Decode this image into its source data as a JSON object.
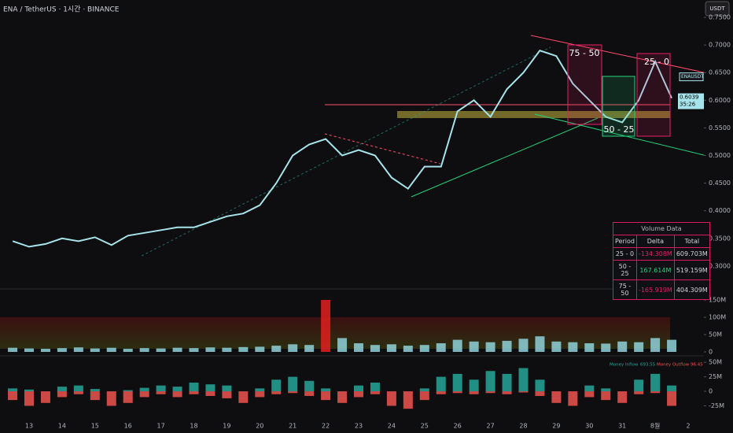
{
  "header": {
    "title": "ENA / TetherUS · 1시간 · BINANCE",
    "currency": "USDT"
  },
  "price_tag": {
    "symbol": "ENAUSDT",
    "countdown": "35:26"
  },
  "zones": [
    {
      "label": "75 - 50",
      "color": "#e91e63"
    },
    {
      "label": "50 - 25",
      "color": "#26d07c"
    },
    {
      "label": "25 - 0",
      "color": "#e91e63"
    }
  ],
  "table": {
    "title": "Volume Data",
    "columns": [
      "Period",
      "Delta",
      "Total"
    ],
    "rows": [
      [
        "25 - 0",
        "-134.308M",
        "609.703M"
      ],
      [
        "50 - 25",
        "167.614M",
        "519.159M"
      ],
      [
        "75 - 50",
        "-165.919M",
        "404.309M"
      ]
    ]
  },
  "chart_data": [
    {
      "type": "line",
      "last_price": 0.6039,
      "categories": [
        null,
        "13",
        null,
        "14",
        null,
        "15",
        null,
        "16",
        null,
        "17",
        null,
        "18",
        null,
        "19",
        null,
        "20",
        null,
        "21",
        null,
        "22",
        null,
        "23",
        null,
        "24",
        null,
        "25",
        null,
        "26",
        null,
        "27",
        null,
        "28",
        null,
        "29",
        null,
        "30",
        null,
        "31",
        null,
        "8월",
        null,
        "2"
      ],
      "series": [
        {
          "name": "ENAUSDT",
          "color": "#a7e3ea",
          "values": [
            0.345,
            0.335,
            0.34,
            0.35,
            0.345,
            0.352,
            0.338,
            0.355,
            0.36,
            0.365,
            0.37,
            0.37,
            0.38,
            0.39,
            0.395,
            0.41,
            0.45,
            0.5,
            0.52,
            0.53,
            0.5,
            0.51,
            0.5,
            0.46,
            0.44,
            0.48,
            0.48,
            0.58,
            0.6,
            0.57,
            0.62,
            0.65,
            0.69,
            0.68,
            0.63,
            0.6,
            0.57,
            0.56,
            0.6,
            0.67,
            0.6039,
            null
          ]
        }
      ],
      "ylim": [
        0.27,
        0.765
      ],
      "yticks": [
        {
          "value": 0.75,
          "label": "0.7500"
        },
        {
          "value": 0.7,
          "label": "0.7000"
        },
        {
          "value": 0.65,
          "label": "0.6500"
        },
        {
          "value": 0.6,
          "label": "0.6000"
        },
        {
          "value": 0.55,
          "label": "0.5500"
        },
        {
          "value": 0.5,
          "label": "0.5000"
        },
        {
          "value": 0.45,
          "label": "0.4500"
        },
        {
          "value": 0.4,
          "label": "0.4000"
        },
        {
          "value": 0.35,
          "label": "0.3500"
        },
        {
          "value": 0.3,
          "label": "0.3000"
        }
      ]
    },
    {
      "type": "bar",
      "series": [
        {
          "name": "Volume",
          "color": "#8fd1d9",
          "values": [
            12,
            10,
            9,
            11,
            13,
            10,
            12,
            9,
            11,
            10,
            12,
            11,
            13,
            12,
            14,
            15,
            18,
            22,
            20,
            150,
            40,
            25,
            20,
            22,
            18,
            20,
            25,
            35,
            30,
            28,
            32,
            38,
            45,
            30,
            28,
            25,
            24,
            30,
            28,
            40,
            35,
            null
          ]
        }
      ],
      "ylim": [
        0,
        175
      ],
      "yticks": [
        {
          "value": 150,
          "label": "150M"
        },
        {
          "value": 100,
          "label": "100M"
        },
        {
          "value": 50,
          "label": "50M"
        },
        0
      ]
    },
    {
      "type": "bar",
      "legend_values": [
        693.55,
        96.45
      ],
      "series": [
        {
          "name": "Money Inflow",
          "color": "#26a69a",
          "values": [
            5,
            3,
            0,
            8,
            10,
            4,
            0,
            2,
            6,
            10,
            8,
            15,
            12,
            10,
            0,
            5,
            20,
            25,
            18,
            5,
            0,
            10,
            15,
            0,
            0,
            5,
            25,
            30,
            20,
            35,
            30,
            40,
            20,
            0,
            0,
            10,
            5,
            0,
            20,
            30,
            10,
            null
          ]
        },
        {
          "name": "Money Outflow",
          "color": "#ef5350",
          "values": [
            -15,
            -25,
            -20,
            -10,
            -5,
            -15,
            -25,
            -20,
            -10,
            -5,
            -10,
            -5,
            -8,
            -12,
            -20,
            -10,
            -5,
            -3,
            -8,
            -15,
            -20,
            -10,
            -5,
            -25,
            -30,
            -15,
            -5,
            -3,
            -5,
            -3,
            -5,
            -2,
            -8,
            -20,
            -25,
            -10,
            -15,
            -20,
            -5,
            -3,
            -25,
            null
          ]
        }
      ],
      "ylim": [
        -65,
        57
      ],
      "yticks": [
        {
          "value": 50,
          "label": "50M"
        },
        {
          "value": 25,
          "label": "25M"
        },
        0,
        {
          "value": -25,
          "label": "-25M"
        }
      ]
    }
  ]
}
